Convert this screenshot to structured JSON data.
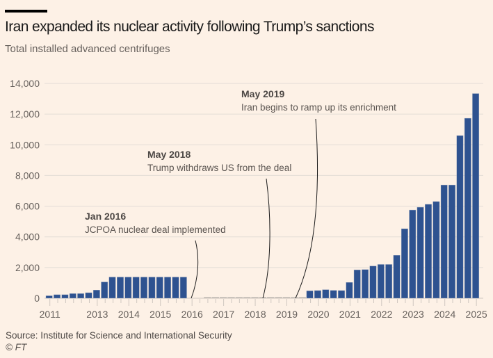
{
  "header": {
    "title": "Iran expanded its nuclear activity following Trump’s sanctions",
    "subtitle": "Total installed advanced centrifuges"
  },
  "footer": {
    "source": "Source: Institute for Science and International Security",
    "copyright": "© FT"
  },
  "colors": {
    "background": "#fdf1e6",
    "bar": "#2e5290",
    "grid": "#e3dcd6",
    "axis_text": "#66605c",
    "annotation_bold": "#4d4845",
    "annotation_text": "#5a5450"
  },
  "chart_data": {
    "type": "bar",
    "title": "Iran expanded its nuclear activity following Trump’s sanctions",
    "subtitle": "Total installed advanced centrifuges",
    "xlabel": "",
    "ylabel": "",
    "ylim": [
      0,
      14000
    ],
    "yticks": [
      0,
      2000,
      4000,
      6000,
      8000,
      10000,
      12000,
      14000
    ],
    "ytick_labels": [
      "0",
      "2,000",
      "4,000",
      "6,000",
      "8,000",
      "10,000",
      "12,000",
      "14,000"
    ],
    "grid": true,
    "x_tick_labels": [
      {
        "label": "2011",
        "index": 0
      },
      {
        "label": "2013",
        "index": 6
      },
      {
        "label": "2014",
        "index": 10
      },
      {
        "label": "2015",
        "index": 14
      },
      {
        "label": "2016",
        "index": 18
      },
      {
        "label": "2017",
        "index": 22
      },
      {
        "label": "2018",
        "index": 26
      },
      {
        "label": "2019",
        "index": 30
      },
      {
        "label": "2020",
        "index": 34
      },
      {
        "label": "2021",
        "index": 38
      },
      {
        "label": "2022",
        "index": 42
      },
      {
        "label": "2023",
        "index": 46
      },
      {
        "label": "2024",
        "index": 50
      },
      {
        "label": "2025",
        "index": 54
      }
    ],
    "values": [
      160,
      230,
      230,
      300,
      300,
      360,
      530,
      1060,
      1380,
      1380,
      1380,
      1380,
      1380,
      1380,
      1380,
      1380,
      1380,
      1380,
      0,
      0,
      20,
      20,
      20,
      20,
      20,
      20,
      20,
      20,
      20,
      20,
      20,
      20,
      20,
      480,
      500,
      560,
      510,
      500,
      1030,
      1850,
      1870,
      2100,
      2200,
      2200,
      2800,
      4530,
      5750,
      5930,
      6120,
      6300,
      7380,
      7380,
      10600,
      11730,
      13340
    ],
    "annotations": [
      {
        "title": "Jan 2016",
        "text": "JCPOA nuclear deal implemented",
        "index": 19
      },
      {
        "title": "May 2018",
        "text": "Trump withdraws US from the deal",
        "index": 28
      },
      {
        "title": "May 2019",
        "text": "Iran begins to ramp up its enrichment",
        "index": 31.5
      }
    ]
  }
}
